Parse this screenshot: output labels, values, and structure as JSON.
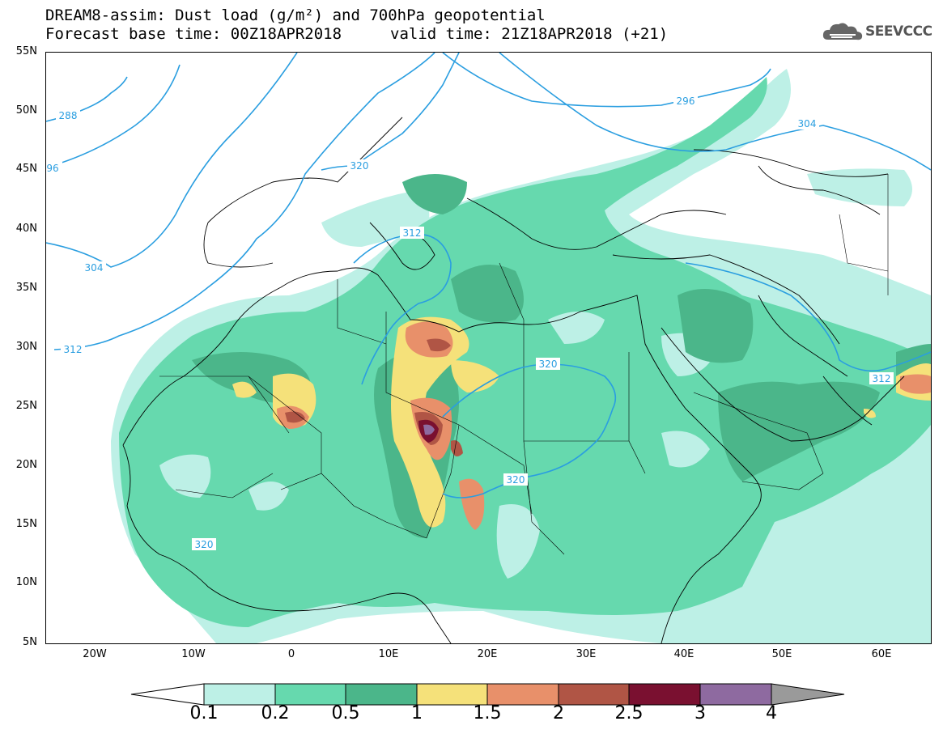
{
  "header": {
    "title_line1": "DREAM8-assim: Dust load (g/m²) and 700hPa geopotential",
    "title_line2": "Forecast base time: 00Z18APR2018",
    "valid_time": "valid time: 21Z18APR2018 (+21)"
  },
  "logo": {
    "text": "SEEVCCC",
    "icon": "cloud-icon"
  },
  "axes": {
    "lat_labels": [
      "55N",
      "50N",
      "45N",
      "40N",
      "35N",
      "30N",
      "25N",
      "20N",
      "15N",
      "10N",
      "5N"
    ],
    "lon_labels": [
      "20W",
      "10W",
      "0",
      "10E",
      "20E",
      "30E",
      "40E",
      "50E",
      "60E"
    ]
  },
  "contours": {
    "labels": [
      "288",
      "296",
      "304",
      "312",
      "320",
      "296",
      "304",
      "312",
      "320",
      "320",
      "312",
      "304"
    ]
  },
  "colorbar": {
    "labels": [
      "0.1",
      "0.2",
      "0.5",
      "1",
      "1.5",
      "2",
      "2.5",
      "3",
      "4"
    ],
    "colors": [
      "#bdf0e6",
      "#66d9ae",
      "#4bb68a",
      "#f5e17a",
      "#e8906a",
      "#b05545",
      "#7a1030",
      "#8e6aa0",
      "#9a9a9a"
    ]
  },
  "fill_colors": {
    "level1": "#bdf0e6",
    "level2": "#66d9ae",
    "level3": "#4bb68a",
    "level4": "#f5e17a",
    "level5": "#e8906a",
    "level6": "#b05545",
    "level7": "#7a1030",
    "level8": "#8e6aa0",
    "contour": "#2a9ee0"
  }
}
